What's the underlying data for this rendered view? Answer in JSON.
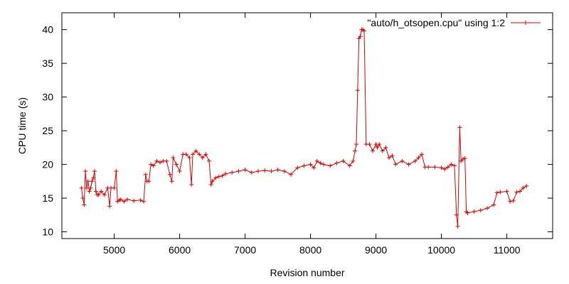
{
  "chart_data": {
    "type": "line",
    "title": "",
    "xlabel": "Revision number",
    "ylabel": "CPU time (s)",
    "xlim": [
      4200,
      11700
    ],
    "ylim": [
      9,
      42.5
    ],
    "xticks": [
      5000,
      6000,
      7000,
      8000,
      9000,
      10000,
      11000
    ],
    "yticks": [
      10,
      15,
      20,
      25,
      30,
      35,
      40
    ],
    "legend": {
      "position": "top-right"
    },
    "grid": false,
    "series": [
      {
        "name": "\"auto/h_otsopen.cpu\" using 1:2",
        "color": "#e00000",
        "marker": "+",
        "x": [
          4500,
          4520,
          4540,
          4560,
          4580,
          4600,
          4620,
          4640,
          4660,
          4680,
          4700,
          4720,
          4740,
          4760,
          4800,
          4850,
          4900,
          4930,
          4950,
          5000,
          5030,
          5050,
          5080,
          5100,
          5150,
          5200,
          5300,
          5400,
          5450,
          5480,
          5500,
          5530,
          5560,
          5600,
          5650,
          5700,
          5750,
          5800,
          5850,
          5880,
          5900,
          5950,
          6000,
          6050,
          6100,
          6150,
          6180,
          6200,
          6250,
          6300,
          6350,
          6400,
          6450,
          6480,
          6500,
          6550,
          6600,
          6650,
          6700,
          6800,
          6900,
          7000,
          7100,
          7200,
          7300,
          7400,
          7500,
          7600,
          7700,
          7800,
          7900,
          8000,
          8050,
          8100,
          8150,
          8200,
          8300,
          8400,
          8500,
          8600,
          8650,
          8680,
          8700,
          8720,
          8740,
          8760,
          8780,
          8800,
          8820,
          8850,
          8900,
          8950,
          9000,
          9020,
          9050,
          9100,
          9150,
          9200,
          9250,
          9300,
          9400,
          9500,
          9600,
          9650,
          9700,
          9750,
          9800,
          9900,
          10000,
          10050,
          10100,
          10150,
          10200,
          10230,
          10250,
          10280,
          10300,
          10330,
          10360,
          10380,
          10400,
          10500,
          10600,
          10700,
          10800,
          10850,
          10900,
          11000,
          11050,
          11100,
          11150,
          11200,
          11250,
          11300
        ],
        "y": [
          16.5,
          15,
          14,
          19,
          16.5,
          17.5,
          16,
          16.5,
          17.5,
          18,
          19,
          16,
          15.5,
          15.5,
          16,
          15.5,
          16.5,
          13.8,
          16.5,
          16.5,
          19,
          14.5,
          14.7,
          14.8,
          14.5,
          14.8,
          14.6,
          14.7,
          14.5,
          18.5,
          17.5,
          17.5,
          20,
          19.8,
          20.5,
          20.3,
          20.5,
          20.5,
          18.5,
          17.5,
          21,
          20,
          19,
          21.5,
          21.5,
          21,
          17,
          21.5,
          22,
          21.5,
          21,
          21.5,
          20.5,
          17,
          17.5,
          18,
          18.2,
          18.3,
          18.6,
          18.8,
          19,
          19.2,
          18.8,
          19,
          19.1,
          19,
          19.2,
          19,
          18.5,
          19.5,
          19.8,
          20,
          19.5,
          20.5,
          20.2,
          20,
          19.8,
          20.2,
          20.5,
          19.8,
          20.5,
          22,
          23,
          31,
          38.7,
          39,
          40,
          40,
          39.8,
          23,
          23,
          22,
          23,
          22.5,
          23,
          22,
          22.5,
          21,
          21.3,
          20,
          20.5,
          20,
          20.5,
          21,
          21.5,
          19.6,
          19.6,
          19.6,
          19.5,
          19.3,
          19.6,
          20,
          19.8,
          12.5,
          10.8,
          25.5,
          20.5,
          20.8,
          20.9,
          13,
          12.8,
          13,
          13.2,
          13.5,
          14,
          15.8,
          15.9,
          16,
          14.5,
          14.6,
          15.9,
          16,
          16.5,
          16.8
        ]
      }
    ]
  }
}
